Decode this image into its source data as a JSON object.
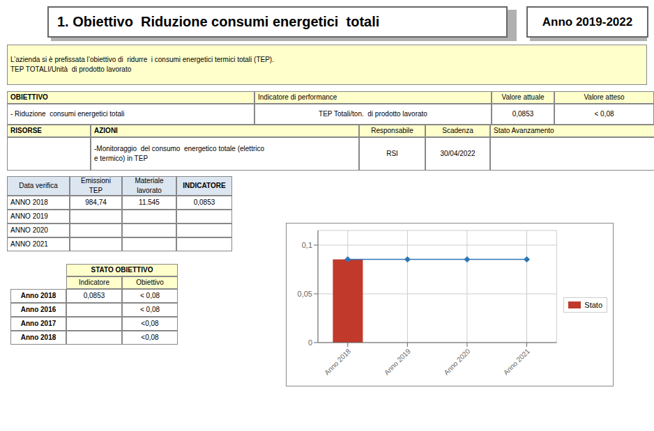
{
  "chart_data": {
    "type": "bar",
    "title": "1. Obiettivo  Riduzione consumi energetici  totali",
    "subtitle": "Anno 2019-2022",
    "annotations": [
      "L’azienda si è prefissata l’obiettivo di  ridurre  i consumi energetici termici totali (TEP).",
      "TEP TOTALI/Unità  di prodotto lavorato",
      "OBIETTIVO",
      "Indicatore di performance",
      "Valore attuale",
      "Valore atteso",
      "- Riduzione  consumi energetici totali",
      "TEP Totali/ton.  di prodotto lavorato",
      "0,0853",
      "< 0,08",
      "RISORSE",
      "AZIONI",
      "Responsabile",
      "Scadenza",
      "Stato Avanzamento",
      "-Monitoraggio  del consumo  energetico totale (elettrico",
      "e termico) in TEP",
      "RSI",
      "30/04/2022",
      "Data verifica",
      "Emissioni",
      "TEP",
      "Materiale",
      "lavorato",
      "INDICATORE",
      "ANNO 2018",
      "984,74",
      "11.545",
      "0,0853",
      "ANNO 2019",
      "ANNO 2020",
      "ANNO 2021",
      "STATO OBIETTIVO",
      "Indicatore",
      "Obiettivo",
      "Anno 2018",
      "0,0853",
      "< 0,08",
      "Anno 2016",
      "< 0,08",
      "Anno 2017",
      "<0,08",
      "Anno 2018",
      "<0,08"
    ],
    "categories": [
      "Anno 2018",
      "Anno 2019",
      "Anno 2020",
      "Anno 2021"
    ],
    "series": [
      {
        "name": "Stato",
        "type": "bar",
        "color": "#c0392b",
        "values": [
          0.0853,
          null,
          null,
          null
        ]
      },
      {
        "type": "line",
        "color": "#2e75b6",
        "marker": "diamond",
        "values": [
          0.0853,
          0.0853,
          0.0853,
          0.0853
        ]
      }
    ],
    "ylim": [
      0,
      0.115
    ],
    "yticks": [
      0,
      {
        "value": 0.05,
        "label": "0,05"
      },
      {
        "value": 0.1,
        "label": "0,1"
      }
    ],
    "grid": true,
    "legend": "right"
  }
}
